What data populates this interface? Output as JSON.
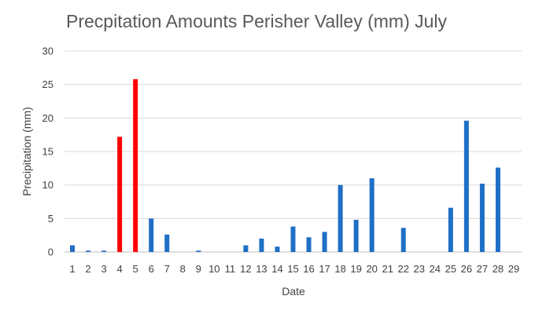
{
  "chart_data": {
    "type": "bar",
    "title": "Precpitation Amounts Perisher Valley (mm) July",
    "xlabel": "Date",
    "ylabel": "Precipitation (mm)",
    "ylim": [
      0,
      30
    ],
    "yticks": [
      0,
      5,
      10,
      15,
      20,
      25,
      30
    ],
    "grid": true,
    "legend": "none",
    "categories": [
      "1",
      "2",
      "3",
      "4",
      "5",
      "6",
      "7",
      "8",
      "9",
      "10",
      "11",
      "12",
      "13",
      "14",
      "15",
      "16",
      "17",
      "18",
      "19",
      "20",
      "21",
      "22",
      "23",
      "24",
      "25",
      "26",
      "27",
      "28",
      "29"
    ],
    "values": [
      1.0,
      0.2,
      0.2,
      17.2,
      25.8,
      5.0,
      2.6,
      0,
      0.2,
      0,
      0,
      1.0,
      2.0,
      0.8,
      3.8,
      2.2,
      3.0,
      10.0,
      4.8,
      11.0,
      0,
      3.6,
      0,
      0,
      6.6,
      19.6,
      10.2,
      12.6,
      0
    ],
    "colors": {
      "default": "#1f6fc5",
      "highlight": "#ff0000"
    },
    "highlighted_categories": [
      "4",
      "5"
    ]
  }
}
